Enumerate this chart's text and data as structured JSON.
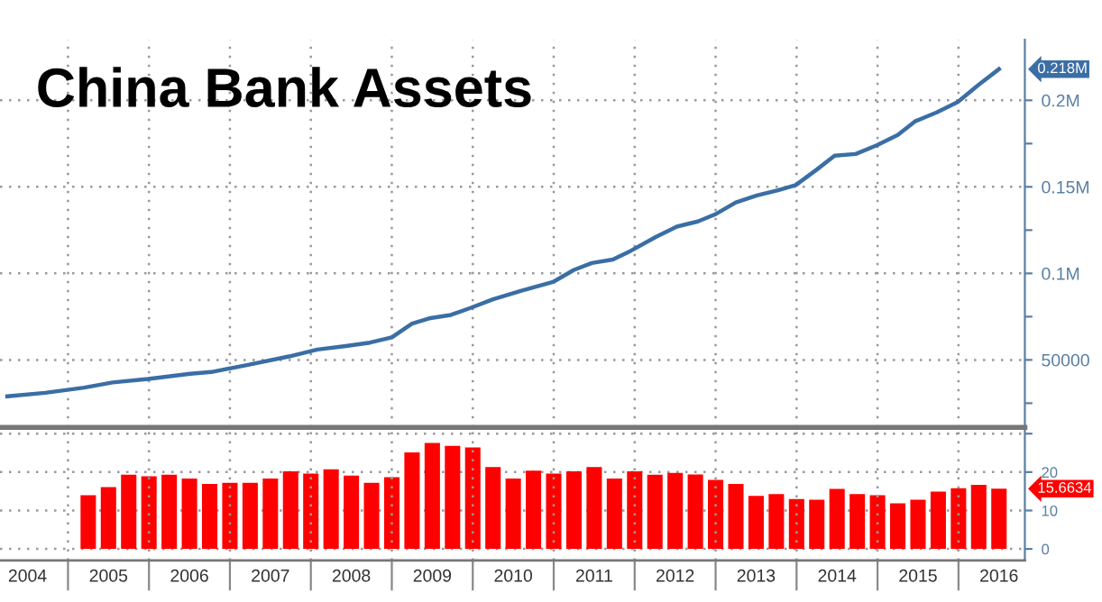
{
  "chart_data": [
    {
      "type": "line",
      "title": "China Bank Assets",
      "x": [
        2004.25,
        2004.72,
        2005.2,
        2005.55,
        2005.99,
        2006.51,
        2006.77,
        2007.21,
        2007.73,
        2008.08,
        2008.43,
        2008.73,
        2009.0,
        2009.25,
        2009.46,
        2009.73,
        2009.97,
        2010.25,
        2010.6,
        2010.99,
        2011.25,
        2011.47,
        2011.73,
        2011.95,
        2012.26,
        2012.52,
        2012.78,
        2012.99,
        2013.25,
        2013.51,
        2013.77,
        2013.99,
        2014.25,
        2014.47,
        2014.73,
        2014.99,
        2015.25,
        2015.47,
        2015.73,
        2015.99,
        2016.25,
        2016.5
      ],
      "series": [
        {
          "color": "#3a6ea5",
          "values": [
            29000,
            31000,
            34000,
            37000,
            39000,
            42000,
            43000,
            47000,
            52000,
            56000,
            58000,
            60000,
            63000,
            71000,
            74000,
            76000,
            80000,
            85000,
            90000,
            95000,
            102000,
            106000,
            108000,
            113000,
            121000,
            127000,
            130000,
            134000,
            141000,
            145000,
            148000,
            151000,
            160000,
            168000,
            169000,
            174000,
            180000,
            188000,
            193000,
            199000,
            209000,
            218000
          ]
        }
      ],
      "xlim": [
        2004.16,
        2016.82
      ],
      "ylim": [
        11000,
        235000
      ],
      "yticks": [
        {
          "value": 25000,
          "label": null
        },
        50000,
        {
          "value": 75000,
          "label": null
        },
        {
          "value": 100000,
          "label": "0.1M"
        },
        {
          "value": 125000,
          "label": null
        },
        {
          "value": 150000,
          "label": "0.15M"
        },
        {
          "value": 175000,
          "label": null
        },
        {
          "value": 200000,
          "label": "0.2M"
        }
      ],
      "xticks": [
        {
          "value": 2005,
          "label": null
        },
        {
          "value": 2006,
          "label": null
        },
        {
          "value": 2007,
          "label": null
        },
        {
          "value": 2008,
          "label": null
        },
        {
          "value": 2009,
          "label": null
        },
        {
          "value": 2010,
          "label": null
        },
        {
          "value": 2011,
          "label": null
        },
        {
          "value": 2012,
          "label": null
        },
        {
          "value": 2013,
          "label": null
        },
        {
          "value": 2014,
          "label": null
        },
        {
          "value": 2015,
          "label": null
        },
        {
          "value": 2016,
          "label": null
        }
      ],
      "grid": true,
      "tick_labels": "y",
      "annotations": [
        "0.218M"
      ]
    },
    {
      "type": "bar",
      "x": [
        2005.25,
        2005.5,
        2005.75,
        2006.0,
        2006.25,
        2006.5,
        2006.75,
        2007.0,
        2007.25,
        2007.5,
        2007.75,
        2008.0,
        2008.25,
        2008.5,
        2008.75,
        2009.0,
        2009.25,
        2009.5,
        2009.75,
        2010.0,
        2010.25,
        2010.5,
        2010.75,
        2011.0,
        2011.25,
        2011.5,
        2011.75,
        2012.0,
        2012.25,
        2012.5,
        2012.75,
        2013.0,
        2013.25,
        2013.5,
        2013.75,
        2014.0,
        2014.25,
        2014.5,
        2014.75,
        2015.0,
        2015.25,
        2015.5,
        2015.75,
        2016.0,
        2016.25,
        2016.5
      ],
      "values": [
        14.0,
        16.1,
        19.3,
        18.9,
        19.3,
        18.3,
        16.9,
        17.2,
        17.2,
        18.3,
        20.2,
        19.6,
        20.7,
        19.1,
        17.2,
        18.7,
        25.1,
        27.6,
        26.8,
        26.4,
        21.3,
        18.3,
        20.4,
        19.6,
        20.2,
        21.3,
        18.3,
        20.2,
        19.3,
        19.8,
        19.4,
        18.0,
        16.9,
        13.8,
        14.3,
        13.0,
        12.8,
        15.6,
        14.3,
        14.0,
        11.9,
        12.8,
        14.9,
        15.8,
        16.7,
        15.6634
      ],
      "color": "#ff0000",
      "xlim": [
        2004.16,
        2016.82
      ],
      "ylim": [
        -3,
        31
      ],
      "yticks": [
        0,
        10,
        20,
        {
          "value": 30,
          "label": null
        }
      ],
      "xticks": [
        {
          "value": 2005,
          "label": null
        },
        {
          "value": 2006,
          "label": null
        },
        {
          "value": 2007,
          "label": null
        },
        {
          "value": 2008,
          "label": null
        },
        {
          "value": 2009,
          "label": null
        },
        {
          "value": 2010,
          "label": null
        },
        {
          "value": 2011,
          "label": null
        },
        {
          "value": 2012,
          "label": null
        },
        {
          "value": 2013,
          "label": null
        },
        {
          "value": 2014,
          "label": null
        },
        {
          "value": 2015,
          "label": null
        },
        {
          "value": 2016,
          "label": null
        },
        {
          "value": 2004.5,
          "label": "2004"
        },
        {
          "value": 2005.5,
          "label": "2005"
        },
        {
          "value": 2006.5,
          "label": "2006"
        },
        {
          "value": 2007.5,
          "label": "2007"
        },
        {
          "value": 2008.5,
          "label": "2008"
        },
        {
          "value": 2009.5,
          "label": "2009"
        },
        {
          "value": 2010.5,
          "label": "2010"
        },
        {
          "value": 2011.5,
          "label": "2011"
        },
        {
          "value": 2012.5,
          "label": "2012"
        },
        {
          "value": 2013.5,
          "label": "2013"
        },
        {
          "value": 2014.5,
          "label": "2014"
        },
        {
          "value": 2015.5,
          "label": "2015"
        },
        {
          "value": 2016.5,
          "label": "2016"
        }
      ],
      "grid": true,
      "annotations": [
        "15.6634"
      ]
    }
  ]
}
